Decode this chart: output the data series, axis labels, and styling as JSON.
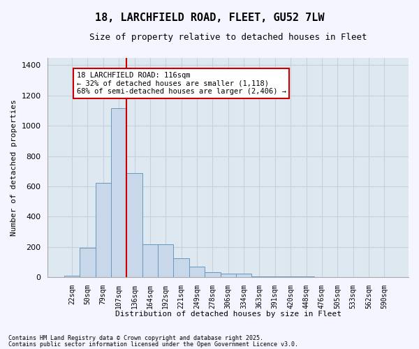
{
  "title1": "18, LARCHFIELD ROAD, FLEET, GU52 7LW",
  "title2": "Size of property relative to detached houses in Fleet",
  "xlabel": "Distribution of detached houses by size in Fleet",
  "ylabel": "Number of detached properties",
  "categories": [
    "22sqm",
    "50sqm",
    "79sqm",
    "107sqm",
    "136sqm",
    "164sqm",
    "192sqm",
    "221sqm",
    "249sqm",
    "278sqm",
    "306sqm",
    "334sqm",
    "363sqm",
    "391sqm",
    "420sqm",
    "448sqm",
    "476sqm",
    "505sqm",
    "533sqm",
    "562sqm",
    "590sqm"
  ],
  "values": [
    10,
    193,
    622,
    1118,
    688,
    218,
    218,
    125,
    70,
    35,
    22,
    22,
    8,
    8,
    5,
    5,
    3,
    3,
    3,
    3,
    3
  ],
  "bar_color": "#c8d8ea",
  "bar_edge_color": "#6699bb",
  "red_line_index": 3.5,
  "annotation_title": "18 LARCHFIELD ROAD: 116sqm",
  "annotation_line1": "← 32% of detached houses are smaller (1,118)",
  "annotation_line2": "68% of semi-detached houses are larger (2,406) →",
  "annotation_box_color": "#ffffff",
  "annotation_box_edge": "#cc0000",
  "red_line_color": "#cc0000",
  "grid_color": "#c8d0e0",
  "bg_color": "#dde8f0",
  "fig_color": "#f5f5ff",
  "ylim": [
    0,
    1450
  ],
  "yticks": [
    0,
    200,
    400,
    600,
    800,
    1000,
    1200,
    1400
  ],
  "footer1": "Contains HM Land Registry data © Crown copyright and database right 2025.",
  "footer2": "Contains public sector information licensed under the Open Government Licence v3.0."
}
